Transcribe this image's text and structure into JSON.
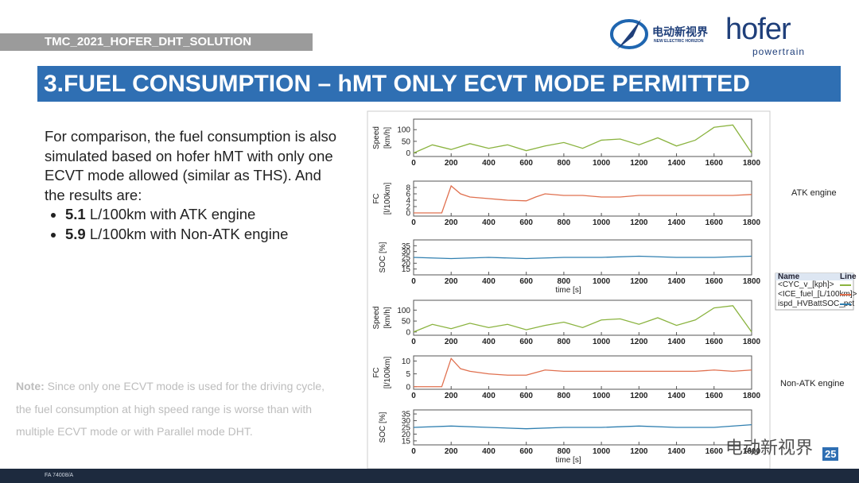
{
  "header": {
    "tag": "TMC_2021_HOFER_DHT_SOLUTION",
    "logo1": "电动新视界",
    "logo1_sub": "NEW ELECTRIC HORIZON",
    "logo2": "hofer",
    "logo2_sub": "powertrain"
  },
  "title": "3.FUEL CONSUMPTION – hMT ONLY ECVT MODE PERMITTED",
  "body": {
    "paragraph": "For comparison, the fuel consumption is also simulated based on hofer hMT with only one ECVT mode allowed (similar as THS). And the results are:",
    "bullets": [
      {
        "value": 5.1,
        "text": "L/100km with ATK engine"
      },
      {
        "value": 5.9,
        "text": "L/100km with Non-ATK engine"
      }
    ]
  },
  "note": {
    "label": "Note:",
    "text": "Since only one ECVT mode is used for the driving cycle, the fuel consumption at high speed range is worse than with multiple ECVT mode or with Parallel mode DHT."
  },
  "labels": {
    "atk": "ATK engine",
    "non_atk": "Non-ATK engine"
  },
  "legend": {
    "headers": [
      "Name",
      "Line"
    ],
    "rows": [
      {
        "name": "<CYC_v_[kph]>",
        "color": "#8ab33f"
      },
      {
        "name": "<ICE_fuel_[L/100km]>",
        "color": "#e0704f"
      },
      {
        "name": "ispd_HVBattSOC_pct",
        "color": "#2f7fb0"
      }
    ]
  },
  "watermark": "电动新视界",
  "page_number": "25",
  "footer": "FA 74008/A",
  "chart_data": [
    {
      "type": "line",
      "ylabel": [
        "Speed",
        "[km/h]"
      ],
      "color": "#8ab33f",
      "x": [
        0,
        100,
        200,
        300,
        400,
        500,
        600,
        700,
        800,
        900,
        1000,
        1100,
        1200,
        1300,
        1400,
        1500,
        1600,
        1700,
        1800
      ],
      "values": [
        0,
        35,
        15,
        40,
        20,
        35,
        10,
        30,
        45,
        20,
        55,
        60,
        35,
        65,
        30,
        55,
        110,
        120,
        0
      ],
      "xlim": [
        0,
        1800
      ],
      "xticks": [
        0,
        200,
        400,
        600,
        800,
        1000,
        1200,
        1400,
        1600,
        1800
      ],
      "ylim": [
        -15,
        145
      ],
      "yticks": [
        0,
        50,
        100
      ]
    },
    {
      "type": "line",
      "ylabel": [
        "FC",
        "[l/100km]"
      ],
      "color": "#e0704f",
      "x": [
        0,
        150,
        200,
        250,
        300,
        400,
        500,
        600,
        650,
        700,
        800,
        900,
        1000,
        1100,
        1200,
        1300,
        1400,
        1500,
        1600,
        1700,
        1800
      ],
      "values": [
        0,
        0,
        8.5,
        6,
        5,
        4.5,
        4,
        3.8,
        5,
        6,
        5.5,
        5.5,
        5,
        5,
        5.5,
        5.5,
        5.5,
        5.5,
        5.5,
        5.5,
        5.8
      ],
      "xlim": [
        0,
        1800
      ],
      "xticks": [
        0,
        200,
        400,
        600,
        800,
        1000,
        1200,
        1400,
        1600,
        1800
      ],
      "ylim": [
        -1,
        10
      ],
      "yticks": [
        0,
        2,
        4,
        6,
        8
      ]
    },
    {
      "type": "line",
      "ylabel": [
        "SOC [%]"
      ],
      "color": "#2f7fb0",
      "xlabel": "time [s]",
      "x": [
        0,
        200,
        400,
        600,
        800,
        1000,
        1200,
        1400,
        1600,
        1800
      ],
      "values": [
        25,
        24,
        25,
        24,
        25,
        25,
        26,
        25,
        25,
        26
      ],
      "xlim": [
        0,
        1800
      ],
      "xticks": [
        0,
        200,
        400,
        600,
        800,
        1000,
        1200,
        1400,
        1600,
        1800
      ],
      "ylim": [
        10,
        40
      ],
      "yticks": [
        15,
        20,
        25,
        30,
        35
      ]
    },
    {
      "type": "line",
      "ylabel": [
        "Speed",
        "[km/h]"
      ],
      "color": "#8ab33f",
      "x": [
        0,
        100,
        200,
        300,
        400,
        500,
        600,
        700,
        800,
        900,
        1000,
        1100,
        1200,
        1300,
        1400,
        1500,
        1600,
        1700,
        1800
      ],
      "values": [
        0,
        35,
        15,
        40,
        20,
        35,
        10,
        30,
        45,
        20,
        55,
        60,
        35,
        65,
        30,
        55,
        110,
        120,
        0
      ],
      "xlim": [
        0,
        1800
      ],
      "xticks": [
        0,
        200,
        400,
        600,
        800,
        1000,
        1200,
        1400,
        1600,
        1800
      ],
      "ylim": [
        -15,
        145
      ],
      "yticks": [
        0,
        50,
        100
      ]
    },
    {
      "type": "line",
      "ylabel": [
        "FC",
        "[l/100km]"
      ],
      "color": "#e0704f",
      "x": [
        0,
        150,
        200,
        250,
        300,
        400,
        500,
        600,
        650,
        700,
        800,
        900,
        1000,
        1100,
        1200,
        1300,
        1400,
        1500,
        1600,
        1700,
        1800
      ],
      "values": [
        0,
        0,
        11,
        7,
        6,
        5,
        4.5,
        4.5,
        5.5,
        6.5,
        6,
        6,
        6,
        6,
        6,
        6,
        6,
        6,
        6.5,
        6,
        6.5
      ],
      "xlim": [
        0,
        1800
      ],
      "xticks": [
        0,
        200,
        400,
        600,
        800,
        1000,
        1200,
        1400,
        1600,
        1800
      ],
      "ylim": [
        -1,
        12
      ],
      "yticks": [
        0,
        5,
        10
      ]
    },
    {
      "type": "line",
      "ylabel": [
        "SOC [%]"
      ],
      "color": "#2f7fb0",
      "xlabel": "time [s]",
      "x": [
        0,
        200,
        400,
        600,
        800,
        1000,
        1200,
        1400,
        1600,
        1800
      ],
      "values": [
        25,
        26,
        25,
        24,
        25,
        25,
        26,
        25,
        25,
        27
      ],
      "xlim": [
        0,
        1800
      ],
      "xticks": [
        0,
        200,
        400,
        600,
        800,
        1000,
        1200,
        1400,
        1600,
        1800
      ],
      "ylim": [
        12,
        38
      ],
      "yticks": [
        15,
        20,
        25,
        30,
        35
      ]
    }
  ]
}
